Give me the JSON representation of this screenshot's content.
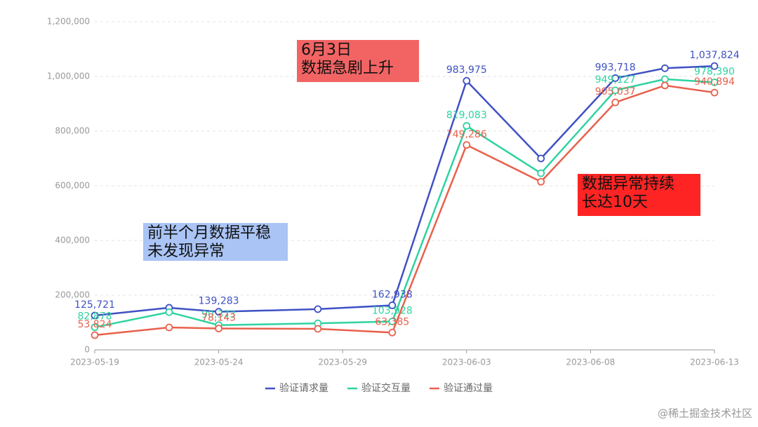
{
  "chart_data": {
    "type": "line",
    "x": [
      "2023-05-19",
      "2023-05-22",
      "2023-05-24",
      "2023-05-28",
      "2023-05-31",
      "2023-06-03",
      "2023-06-06",
      "2023-06-09",
      "2023-06-11",
      "2023-06-13"
    ],
    "xlim": [
      "2023-05-19",
      "2023-06-13"
    ],
    "xticks": [
      "2023-05-19",
      "2023-05-24",
      "2023-05-29",
      "2023-06-03",
      "2023-06-08",
      "2023-06-13"
    ],
    "ylim": [
      0,
      1200000
    ],
    "yticks": [
      0,
      {
        "value": 200000,
        "label": "200,000"
      },
      {
        "value": 400000,
        "label": "400,000"
      },
      {
        "value": 600000,
        "label": "600,000"
      },
      {
        "value": 800000,
        "label": "800,000"
      },
      {
        "value": 1000000,
        "label": "1,000,000"
      },
      {
        "value": 1200000,
        "label": "1,200,000"
      }
    ],
    "grid": true,
    "legend": "bottom",
    "series": [
      {
        "name": "验证请求量",
        "color": "#3f51c4",
        "values": [
          125721,
          154000,
          139283,
          149000,
          162938,
          983975,
          700000,
          993718,
          1030000,
          1037824
        ],
        "value_labels": [
          "125,721",
          null,
          "139,283",
          null,
          "162,938",
          "983,975",
          null,
          "993,718",
          null,
          "1,037,824"
        ]
      },
      {
        "name": "验证交互量",
        "color": "#2ed3a0",
        "values": [
          82878,
          138000,
          90373,
          97000,
          103928,
          819083,
          646000,
          949127,
          990000,
          978390
        ],
        "value_labels": [
          "82,878",
          null,
          "90,373",
          null,
          "103,928",
          "819,083",
          null,
          "949,127",
          null,
          "978,390"
        ]
      },
      {
        "name": "验证通过量",
        "color": "#e8604c",
        "values": [
          53824,
          82000,
          78143,
          77000,
          63385,
          749286,
          615000,
          905037,
          967000,
          940894
        ],
        "value_labels": [
          "53,824",
          null,
          "78,143",
          null,
          "63,385",
          "749,286",
          null,
          "905,037",
          null,
          "940,894"
        ]
      }
    ],
    "annotations": [
      {
        "lines": [
          "6月3日",
          "数据急剧上升"
        ],
        "color": "#f26464"
      },
      {
        "lines": [
          "前半个月数据平稳",
          "未发现异常"
        ],
        "color": "#a9c4f5"
      },
      {
        "lines": [
          "数据异常持续",
          "长达10天"
        ],
        "color": "#ff2424"
      }
    ]
  },
  "watermark": "@稀土掘金技术社区"
}
